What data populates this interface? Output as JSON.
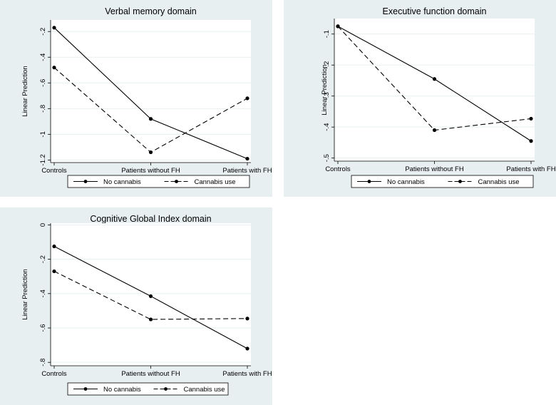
{
  "chart_data": [
    {
      "type": "line",
      "title": "Verbal memory domain",
      "ylabel": "Linear Prediction",
      "xlabel": "",
      "categories": [
        "Controls",
        "Patients without FH",
        "Patients with FH"
      ],
      "yticks": [
        -0.2,
        -0.4,
        -0.6,
        -0.8,
        -1,
        -1.2
      ],
      "ytick_labels": [
        "-.2",
        "-.4",
        "-.6",
        "-.8",
        "-1",
        "-1.2"
      ],
      "ylim": [
        -1.22,
        -0.11
      ],
      "grid": true,
      "legend_position": "bottom",
      "series": [
        {
          "name": "No cannabis",
          "dash": "solid",
          "values": [
            -0.17,
            -0.88,
            -1.19
          ]
        },
        {
          "name": "Cannabis use",
          "dash": "dashed",
          "values": [
            -0.48,
            -1.14,
            -0.72
          ]
        }
      ]
    },
    {
      "type": "line",
      "title": "Executive function domain",
      "ylabel": "Linear Prediction",
      "xlabel": "",
      "categories": [
        "Controls",
        "Patients without FH",
        "Patients with FH"
      ],
      "yticks": [
        -0.1,
        -0.2,
        -0.3,
        -0.4,
        -0.5
      ],
      "ytick_labels": [
        "-.1",
        "-.2",
        "-.3",
        "-.4",
        "-.5"
      ],
      "ylim": [
        -0.51,
        -0.05
      ],
      "grid": true,
      "legend_position": "bottom",
      "series": [
        {
          "name": "No cannabis",
          "dash": "solid",
          "values": [
            -0.075,
            -0.245,
            -0.445
          ]
        },
        {
          "name": "Cannabis use",
          "dash": "dashed",
          "values": [
            -0.075,
            -0.41,
            -0.373
          ]
        }
      ]
    },
    {
      "type": "line",
      "title": "Cognitive Global Index domain",
      "ylabel": "Linear Prediction",
      "xlabel": "",
      "categories": [
        "Controls",
        "Patients without FH",
        "Patients with FH"
      ],
      "yticks": [
        0,
        -0.2,
        -0.4,
        -0.6,
        -0.8
      ],
      "ytick_labels": [
        "0",
        "-.2",
        "-.4",
        "-.6",
        "-.8"
      ],
      "ylim": [
        -0.82,
        0.01
      ],
      "grid": true,
      "legend_position": "bottom",
      "series": [
        {
          "name": "No cannabis",
          "dash": "solid",
          "values": [
            -0.125,
            -0.415,
            -0.72
          ]
        },
        {
          "name": "Cannabis use",
          "dash": "dashed",
          "values": [
            -0.27,
            -0.55,
            -0.545
          ]
        }
      ]
    }
  ]
}
